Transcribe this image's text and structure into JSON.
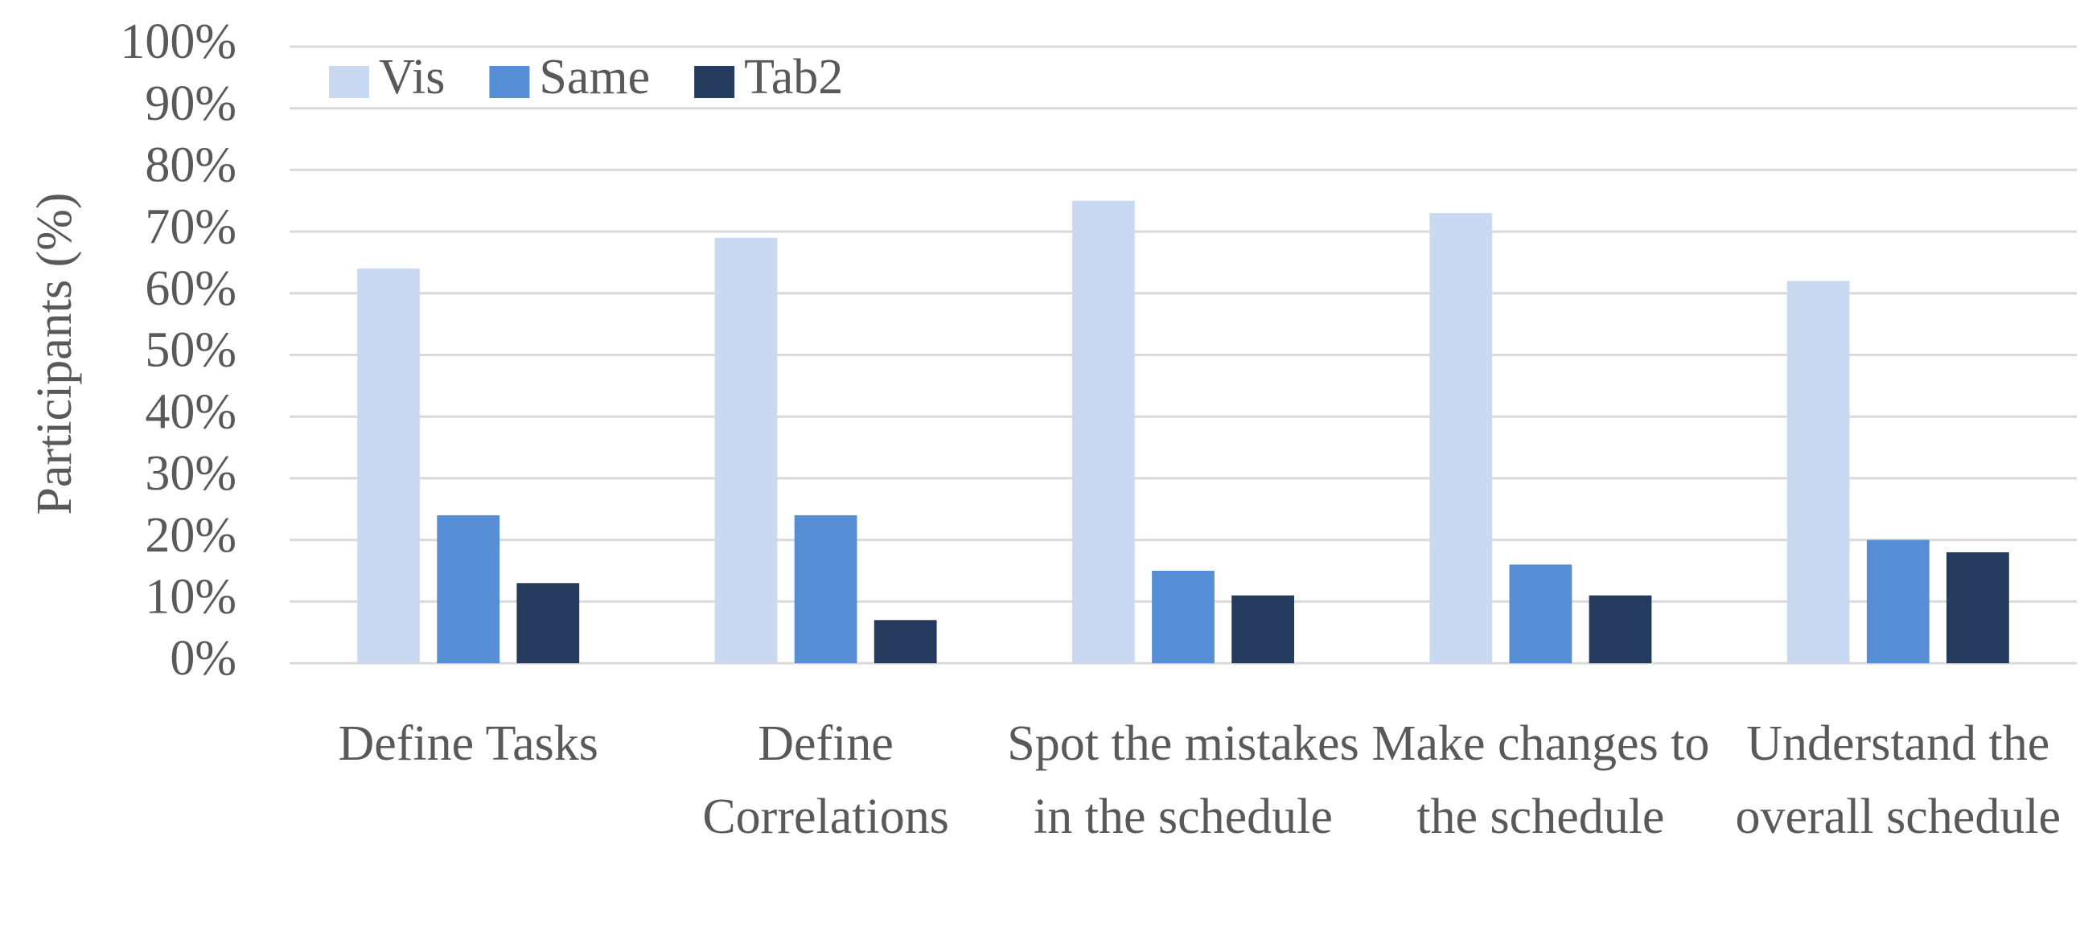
{
  "chart_data": {
    "type": "bar",
    "y_label": "Participants (%)",
    "categories": [
      "Define Tasks",
      "Define Correlations",
      "Spot the mistakes in the schedule",
      "Make changes to the schedule",
      "Understand the overall schedule"
    ],
    "series": [
      {
        "name": "Vis",
        "color": "#c9d9f2",
        "values": [
          64,
          69,
          75,
          73,
          62
        ]
      },
      {
        "name": "Same",
        "color": "#558ed5",
        "values": [
          24,
          24,
          15,
          16,
          20
        ]
      },
      {
        "name": "Tab2",
        "color": "#243b5e",
        "values": [
          13,
          7,
          11,
          11,
          18
        ]
      }
    ],
    "ylim": [
      0,
      100
    ],
    "yticks": [
      {
        "value": 0,
        "label": "0%"
      },
      {
        "value": 10,
        "label": "10%"
      },
      {
        "value": 20,
        "label": "20%"
      },
      {
        "value": 30,
        "label": "30%"
      },
      {
        "value": 40,
        "label": "40%"
      },
      {
        "value": 50,
        "label": "50%"
      },
      {
        "value": 60,
        "label": "60%"
      },
      {
        "value": 70,
        "label": "70%"
      },
      {
        "value": 80,
        "label": "80%"
      },
      {
        "value": 90,
        "label": "90%"
      },
      {
        "value": 100,
        "label": "100%"
      }
    ],
    "grid": true,
    "legend": "top-left"
  }
}
